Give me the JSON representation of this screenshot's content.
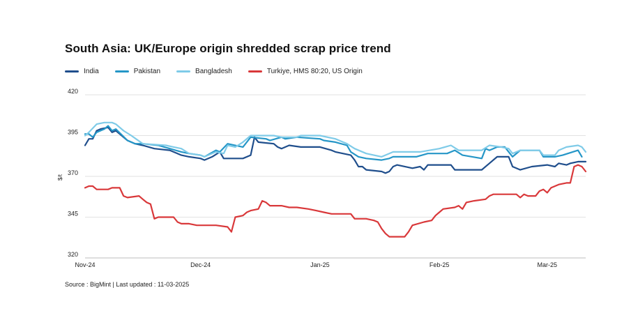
{
  "title": "South Asia: UK/Europe origin shredded scrap price trend",
  "source_note": "Source : BigMint | Last updated : 11-03-2025",
  "chart_data": {
    "type": "line",
    "title": "South Asia: UK/Europe origin shredded scrap price trend",
    "xlabel": "",
    "ylabel": "$/t",
    "ylim": [
      320,
      420
    ],
    "yticks": [
      320,
      345,
      370,
      395,
      420
    ],
    "xlim": [
      "2024-11-01",
      "2025-03-11"
    ],
    "xticks": [
      {
        "date": "2024-11-01",
        "label": "Nov-24"
      },
      {
        "date": "2024-12-01",
        "label": "Dec-24"
      },
      {
        "date": "2025-01-01",
        "label": "Jan-25"
      },
      {
        "date": "2025-02-01",
        "label": "Feb-25"
      },
      {
        "date": "2025-03-01",
        "label": "Mar-25"
      }
    ],
    "grid": "horizontal",
    "legend_position": "top-left",
    "series": [
      {
        "name": "India",
        "color": "#1f4e8c",
        "points": [
          [
            "2024-11-01",
            389
          ],
          [
            "2024-11-02",
            393
          ],
          [
            "2024-11-03",
            393
          ],
          [
            "2024-11-04",
            398
          ],
          [
            "2024-11-05",
            399
          ],
          [
            "2024-11-07",
            400
          ],
          [
            "2024-11-08",
            397
          ],
          [
            "2024-11-09",
            398
          ],
          [
            "2024-11-12",
            392
          ],
          [
            "2024-11-14",
            390
          ],
          [
            "2024-11-16",
            389
          ],
          [
            "2024-11-19",
            387
          ],
          [
            "2024-11-23",
            386
          ],
          [
            "2024-11-26",
            383
          ],
          [
            "2024-11-28",
            382
          ],
          [
            "2024-12-01",
            381
          ],
          [
            "2024-12-02",
            380
          ],
          [
            "2024-12-04",
            382
          ],
          [
            "2024-12-06",
            385
          ],
          [
            "2024-12-07",
            381
          ],
          [
            "2024-12-12",
            381
          ],
          [
            "2024-12-14",
            383
          ],
          [
            "2024-12-15",
            394
          ],
          [
            "2024-12-16",
            391
          ],
          [
            "2024-12-20",
            390
          ],
          [
            "2024-12-21",
            388
          ],
          [
            "2024-12-22",
            387
          ],
          [
            "2024-12-24",
            389
          ],
          [
            "2024-12-27",
            388
          ],
          [
            "2025-01-01",
            388
          ],
          [
            "2025-01-04",
            386
          ],
          [
            "2025-01-05",
            385
          ],
          [
            "2025-01-09",
            383
          ],
          [
            "2025-01-10",
            380
          ],
          [
            "2025-01-11",
            376
          ],
          [
            "2025-01-12",
            376
          ],
          [
            "2025-01-13",
            374
          ],
          [
            "2025-01-17",
            373
          ],
          [
            "2025-01-18",
            372
          ],
          [
            "2025-01-19",
            373
          ],
          [
            "2025-01-20",
            376
          ],
          [
            "2025-01-21",
            377
          ],
          [
            "2025-01-25",
            375
          ],
          [
            "2025-01-27",
            376
          ],
          [
            "2025-01-28",
            374
          ],
          [
            "2025-01-29",
            377
          ],
          [
            "2025-02-04",
            377
          ],
          [
            "2025-02-05",
            374
          ],
          [
            "2025-02-12",
            374
          ],
          [
            "2025-02-14",
            378
          ],
          [
            "2025-02-16",
            382
          ],
          [
            "2025-02-19",
            382
          ],
          [
            "2025-02-20",
            376
          ],
          [
            "2025-02-22",
            374
          ],
          [
            "2025-02-25",
            376
          ],
          [
            "2025-03-01",
            377
          ],
          [
            "2025-03-03",
            376
          ],
          [
            "2025-03-04",
            378
          ],
          [
            "2025-03-06",
            377
          ],
          [
            "2025-03-07",
            378
          ],
          [
            "2025-03-09",
            379
          ],
          [
            "2025-03-11",
            379
          ]
        ]
      },
      {
        "name": "Pakistan",
        "color": "#2596c7",
        "points": [
          [
            "2024-11-01",
            396
          ],
          [
            "2024-11-02",
            396
          ],
          [
            "2024-11-03",
            394
          ],
          [
            "2024-11-04",
            397
          ],
          [
            "2024-11-05",
            398
          ],
          [
            "2024-11-06",
            399
          ],
          [
            "2024-11-07",
            401
          ],
          [
            "2024-11-08",
            398
          ],
          [
            "2024-11-09",
            399
          ],
          [
            "2024-11-12",
            392
          ],
          [
            "2024-11-14",
            390
          ],
          [
            "2024-11-16",
            390
          ],
          [
            "2024-11-20",
            389
          ],
          [
            "2024-11-23",
            387
          ],
          [
            "2024-11-26",
            385
          ],
          [
            "2024-11-28",
            384
          ],
          [
            "2024-12-01",
            383
          ],
          [
            "2024-12-02",
            382
          ],
          [
            "2024-12-05",
            386
          ],
          [
            "2024-12-06",
            385
          ],
          [
            "2024-12-08",
            390
          ],
          [
            "2024-12-12",
            388
          ],
          [
            "2024-12-14",
            394
          ],
          [
            "2024-12-18",
            393
          ],
          [
            "2024-12-19",
            392
          ],
          [
            "2024-12-22",
            394
          ],
          [
            "2024-12-23",
            393
          ],
          [
            "2024-12-26",
            394
          ],
          [
            "2025-01-01",
            393
          ],
          [
            "2025-01-02",
            392
          ],
          [
            "2025-01-05",
            391
          ],
          [
            "2025-01-08",
            389
          ],
          [
            "2025-01-09",
            385
          ],
          [
            "2025-01-11",
            382
          ],
          [
            "2025-01-13",
            381
          ],
          [
            "2025-01-17",
            380
          ],
          [
            "2025-01-19",
            381
          ],
          [
            "2025-01-20",
            382
          ],
          [
            "2025-01-26",
            382
          ],
          [
            "2025-01-29",
            384
          ],
          [
            "2025-02-03",
            384
          ],
          [
            "2025-02-05",
            386
          ],
          [
            "2025-02-07",
            383
          ],
          [
            "2025-02-12",
            381
          ],
          [
            "2025-02-13",
            387
          ],
          [
            "2025-02-14",
            386
          ],
          [
            "2025-02-16",
            388
          ],
          [
            "2025-02-18",
            388
          ],
          [
            "2025-02-20",
            382
          ],
          [
            "2025-02-22",
            386
          ],
          [
            "2025-02-27",
            386
          ],
          [
            "2025-02-28",
            382
          ],
          [
            "2025-03-03",
            382
          ],
          [
            "2025-03-05",
            383
          ],
          [
            "2025-03-09",
            386
          ],
          [
            "2025-03-10",
            382
          ]
        ]
      },
      {
        "name": "Bangladesh",
        "color": "#7fcbe8",
        "points": [
          [
            "2024-11-01",
            395
          ],
          [
            "2024-11-02",
            397
          ],
          [
            "2024-11-04",
            402
          ],
          [
            "2024-11-06",
            403
          ],
          [
            "2024-11-08",
            403
          ],
          [
            "2024-11-09",
            402
          ],
          [
            "2024-11-11",
            398
          ],
          [
            "2024-11-13",
            395
          ],
          [
            "2024-11-16",
            390
          ],
          [
            "2024-11-22",
            389
          ],
          [
            "2024-11-24",
            388
          ],
          [
            "2024-11-26",
            387
          ],
          [
            "2024-11-28",
            384
          ],
          [
            "2024-12-01",
            383
          ],
          [
            "2024-12-02",
            382
          ],
          [
            "2024-12-05",
            385
          ],
          [
            "2024-12-07",
            384
          ],
          [
            "2024-12-08",
            389
          ],
          [
            "2024-12-10",
            388
          ],
          [
            "2024-12-12",
            391
          ],
          [
            "2024-12-14",
            395
          ],
          [
            "2024-12-20",
            395
          ],
          [
            "2024-12-22",
            394
          ],
          [
            "2024-12-26",
            394
          ],
          [
            "2024-12-27",
            395
          ],
          [
            "2025-01-01",
            395
          ],
          [
            "2025-01-05",
            393
          ],
          [
            "2025-01-06",
            392
          ],
          [
            "2025-01-08",
            390
          ],
          [
            "2025-01-10",
            387
          ],
          [
            "2025-01-13",
            384
          ],
          [
            "2025-01-17",
            382
          ],
          [
            "2025-01-19",
            384
          ],
          [
            "2025-01-20",
            385
          ],
          [
            "2025-01-27",
            385
          ],
          [
            "2025-02-01",
            387
          ],
          [
            "2025-02-04",
            389
          ],
          [
            "2025-02-06",
            386
          ],
          [
            "2025-02-12",
            386
          ],
          [
            "2025-02-14",
            389
          ],
          [
            "2025-02-17",
            388
          ],
          [
            "2025-02-19",
            387
          ],
          [
            "2025-02-20",
            384
          ],
          [
            "2025-02-22",
            386
          ],
          [
            "2025-02-27",
            386
          ],
          [
            "2025-02-28",
            383
          ],
          [
            "2025-03-03",
            383
          ],
          [
            "2025-03-04",
            386
          ],
          [
            "2025-03-06",
            388
          ],
          [
            "2025-03-09",
            389
          ],
          [
            "2025-03-10",
            388
          ],
          [
            "2025-03-11",
            385
          ]
        ]
      },
      {
        "name": "Turkiye, HMS 80:20, US Origin",
        "color": "#d9383a",
        "points": [
          [
            "2024-11-01",
            363
          ],
          [
            "2024-11-02",
            364
          ],
          [
            "2024-11-03",
            364
          ],
          [
            "2024-11-04",
            362
          ],
          [
            "2024-11-07",
            362
          ],
          [
            "2024-11-08",
            363
          ],
          [
            "2024-11-10",
            363
          ],
          [
            "2024-11-11",
            358
          ],
          [
            "2024-11-12",
            357
          ],
          [
            "2024-11-15",
            358
          ],
          [
            "2024-11-16",
            356
          ],
          [
            "2024-11-17",
            354
          ],
          [
            "2024-11-18",
            353
          ],
          [
            "2024-11-19",
            344
          ],
          [
            "2024-11-20",
            345
          ],
          [
            "2024-11-24",
            345
          ],
          [
            "2024-11-25",
            342
          ],
          [
            "2024-11-26",
            341
          ],
          [
            "2024-11-28",
            341
          ],
          [
            "2024-11-30",
            340
          ],
          [
            "2024-12-05",
            340
          ],
          [
            "2024-12-08",
            339
          ],
          [
            "2024-12-09",
            336
          ],
          [
            "2024-12-10",
            345
          ],
          [
            "2024-12-12",
            346
          ],
          [
            "2024-12-13",
            348
          ],
          [
            "2024-12-14",
            349
          ],
          [
            "2024-12-16",
            350
          ],
          [
            "2024-12-17",
            355
          ],
          [
            "2024-12-18",
            354
          ],
          [
            "2024-12-19",
            352
          ],
          [
            "2024-12-22",
            352
          ],
          [
            "2024-12-24",
            351
          ],
          [
            "2024-12-26",
            351
          ],
          [
            "2024-12-29",
            350
          ],
          [
            "2024-12-31",
            349
          ],
          [
            "2025-01-02",
            348
          ],
          [
            "2025-01-04",
            347
          ],
          [
            "2025-01-09",
            347
          ],
          [
            "2025-01-10",
            344
          ],
          [
            "2025-01-13",
            344
          ],
          [
            "2025-01-15",
            343
          ],
          [
            "2025-01-16",
            342
          ],
          [
            "2025-01-17",
            338
          ],
          [
            "2025-01-18",
            335
          ],
          [
            "2025-01-19",
            333
          ],
          [
            "2025-01-23",
            333
          ],
          [
            "2025-01-24",
            336
          ],
          [
            "2025-01-25",
            340
          ],
          [
            "2025-01-28",
            342
          ],
          [
            "2025-01-30",
            343
          ],
          [
            "2025-01-31",
            346
          ],
          [
            "2025-02-01",
            348
          ],
          [
            "2025-02-02",
            350
          ],
          [
            "2025-02-05",
            351
          ],
          [
            "2025-02-06",
            352
          ],
          [
            "2025-02-07",
            350
          ],
          [
            "2025-02-08",
            354
          ],
          [
            "2025-02-10",
            355
          ],
          [
            "2025-02-13",
            356
          ],
          [
            "2025-02-14",
            358
          ],
          [
            "2025-02-15",
            359
          ],
          [
            "2025-02-16",
            359
          ],
          [
            "2025-02-19",
            359
          ],
          [
            "2025-02-21",
            359
          ],
          [
            "2025-02-22",
            357
          ],
          [
            "2025-02-23",
            359
          ],
          [
            "2025-02-24",
            358
          ],
          [
            "2025-02-26",
            358
          ],
          [
            "2025-02-27",
            361
          ],
          [
            "2025-02-28",
            362
          ],
          [
            "2025-03-01",
            360
          ],
          [
            "2025-03-02",
            363
          ],
          [
            "2025-03-04",
            365
          ],
          [
            "2025-03-06",
            366
          ],
          [
            "2025-03-07",
            366
          ],
          [
            "2025-03-08",
            376
          ],
          [
            "2025-03-09",
            377
          ],
          [
            "2025-03-10",
            376
          ],
          [
            "2025-03-11",
            373
          ]
        ]
      }
    ]
  }
}
